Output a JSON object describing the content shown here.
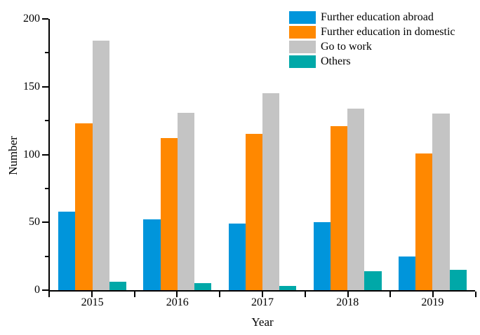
{
  "figure": {
    "background": "#FFFFFF",
    "axis_color": "#000000"
  },
  "chart_data": {
    "type": "bar",
    "title": "",
    "xlabel": "Year",
    "ylabel": "Number",
    "categories": [
      "2015",
      "2016",
      "2017",
      "2018",
      "2019"
    ],
    "series": [
      {
        "name": "Further education abroad",
        "color": "#0095DB",
        "values": [
          58,
          52,
          49,
          50,
          25
        ]
      },
      {
        "name": "Further education in domestic",
        "color": "#FF8800",
        "values": [
          123,
          112,
          115,
          121,
          101
        ]
      },
      {
        "name": "Go to work",
        "color": "#C4C4C4",
        "values": [
          184,
          131,
          145,
          134,
          130
        ]
      },
      {
        "name": "Others",
        "color": "#00A8A8",
        "values": [
          6,
          5,
          3,
          14,
          15
        ]
      }
    ],
    "ylim": [
      0,
      200
    ],
    "yticks_major": [
      0,
      50,
      100,
      150,
      200
    ],
    "yticks_minor": [
      25,
      75,
      125,
      175
    ],
    "grid": false,
    "legend_position": "top-right"
  }
}
